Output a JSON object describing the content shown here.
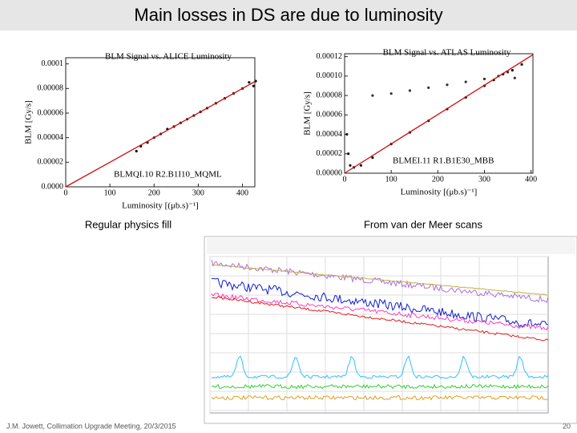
{
  "title": "Main losses in DS are due to luminosity",
  "captions": [
    "Regular physics fill",
    "From van der Meer scans"
  ],
  "footer": "J.M. Jowett, Collimation Upgrade Meeting, 20/3/2015",
  "page_number": "20",
  "chart_data": [
    {
      "type": "scatter",
      "title": "BLM Signal vs. ALICE Luminosity",
      "x_label": "Luminosity [(μb.s)⁻¹]",
      "y_label": "BLM [Gy/s]",
      "annotation": "BLMQI.10 R2.B1I10_MQML",
      "xlim": [
        0,
        428
      ],
      "ylim": [
        0,
        0.000105
      ],
      "xticks": [
        0,
        100,
        200,
        300,
        400
      ],
      "yticks": [
        {
          "value": 0,
          "label": "0.0000"
        },
        2e-05,
        4e-05,
        6e-05,
        8e-05,
        0.0001
      ],
      "series": [
        {
          "type": "scatter",
          "color": "#111111",
          "x": [
            160,
            170,
            185,
            200,
            215,
            230,
            245,
            260,
            275,
            290,
            305,
            320,
            340,
            360,
            380,
            400,
            415,
            425,
            430
          ],
          "values": [
            2.9e-05,
            3.3e-05,
            3.6e-05,
            4e-05,
            4.3e-05,
            4.7e-05,
            4.9e-05,
            5.2e-05,
            5.5e-05,
            5.8e-05,
            6.1e-05,
            6.4e-05,
            6.8e-05,
            7.2e-05,
            7.6e-05,
            8e-05,
            8.5e-05,
            8.2e-05,
            8.6e-05
          ]
        },
        {
          "type": "line",
          "color": "#cc1111",
          "x": [
            0,
            428
          ],
          "values": [
            0,
            8.56e-05
          ]
        }
      ]
    },
    {
      "type": "scatter",
      "title": "BLM Signal vs. ATLAS Luminosity",
      "x_label": "Luminosity [(μb.s)⁻¹]",
      "y_label": "BLM [Gy/s]",
      "annotation": "BLMEI.11 R1.B1E30_MBB",
      "xlim": [
        0,
        404
      ],
      "ylim": [
        0,
        0.000123
      ],
      "xticks": [
        0,
        100,
        200,
        300,
        400
      ],
      "yticks": [
        {
          "value": 0,
          "label": "0.00000"
        },
        2e-05,
        4e-05,
        6e-05,
        8e-05,
        {
          "value": 0.0001,
          "label": "0.00010"
        },
        0.00012
      ],
      "series": [
        {
          "type": "scatter",
          "color": "#111111",
          "x": [
            5,
            8,
            12,
            20,
            35,
            60,
            100,
            140,
            180,
            220,
            260,
            300,
            320,
            340,
            360,
            380
          ],
          "values": [
            4e-05,
            2e-05,
            8e-06,
            6e-06,
            8e-06,
            1.6e-05,
            3e-05,
            4.2e-05,
            5.4e-05,
            6.6e-05,
            7.8e-05,
            9e-05,
            9.6e-05,
            0.000102,
            0.000106,
            0.000112
          ]
        },
        {
          "type": "scatter",
          "color": "#333333",
          "x": [
            60,
            100,
            140,
            180,
            220,
            260,
            300,
            330,
            350,
            365
          ],
          "values": [
            8e-05,
            8.2e-05,
            8.5e-05,
            8.8e-05,
            9.1e-05,
            9.4e-05,
            9.7e-05,
            0.0001,
            0.000104,
            9.8e-05
          ]
        },
        {
          "type": "line",
          "color": "#cc1111",
          "x": [
            0,
            404
          ],
          "values": [
            0,
            0.000122
          ]
        }
      ]
    }
  ]
}
